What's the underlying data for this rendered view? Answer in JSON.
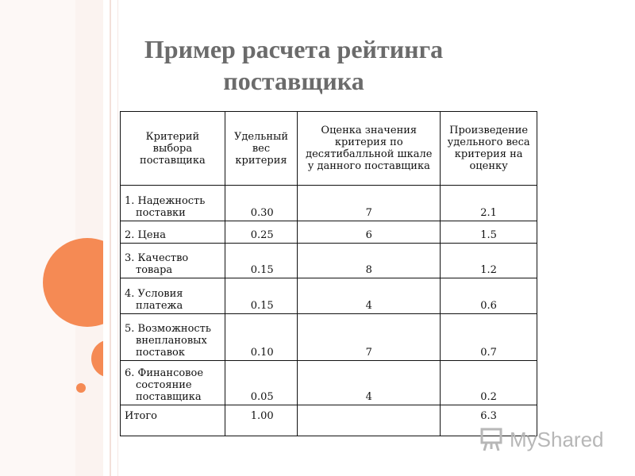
{
  "title": {
    "line1": "Пример расчета рейтинга",
    "line2": "поставщика"
  },
  "table": {
    "headers": [
      "Критерий выбора поставщика",
      "Удельный вес критерия",
      "Оценка значения критерия по десятибалльной шкале у данного поставщика",
      "Произведение удельного веса критерия на оценку"
    ],
    "rows": [
      {
        "criterion_l1": "1. Надежность",
        "criterion_l2": "поставки",
        "criterion_l3": "",
        "weight": "0.30",
        "score": "7",
        "product": "2.1"
      },
      {
        "criterion_l1": "2. Цена",
        "criterion_l2": "",
        "criterion_l3": "",
        "weight": "0.25",
        "score": "6",
        "product": "1.5"
      },
      {
        "criterion_l1": "3. Качество",
        "criterion_l2": "товара",
        "criterion_l3": "",
        "weight": "0.15",
        "score": "8",
        "product": "1.2"
      },
      {
        "criterion_l1": "4. Условия",
        "criterion_l2": "платежа",
        "criterion_l3": "",
        "weight": "0.15",
        "score": "4",
        "product": "0.6"
      },
      {
        "criterion_l1": "5. Возможность",
        "criterion_l2": "внеплановых",
        "criterion_l3": "поставок",
        "weight": "0.10",
        "score": "7",
        "product": "0.7"
      },
      {
        "criterion_l1": "6. Финансовое",
        "criterion_l2": "состояние",
        "criterion_l3": "поставщика",
        "weight": "0.05",
        "score": "4",
        "product": "0.2"
      }
    ],
    "total": {
      "label": "Итого",
      "weight": "1.00",
      "score": "",
      "product": "6.3"
    }
  },
  "watermark": {
    "text": "MyShared",
    "icon": "presentation-board-icon"
  },
  "colors": {
    "accent": "#f58a54",
    "title": "#6b6b6b"
  }
}
